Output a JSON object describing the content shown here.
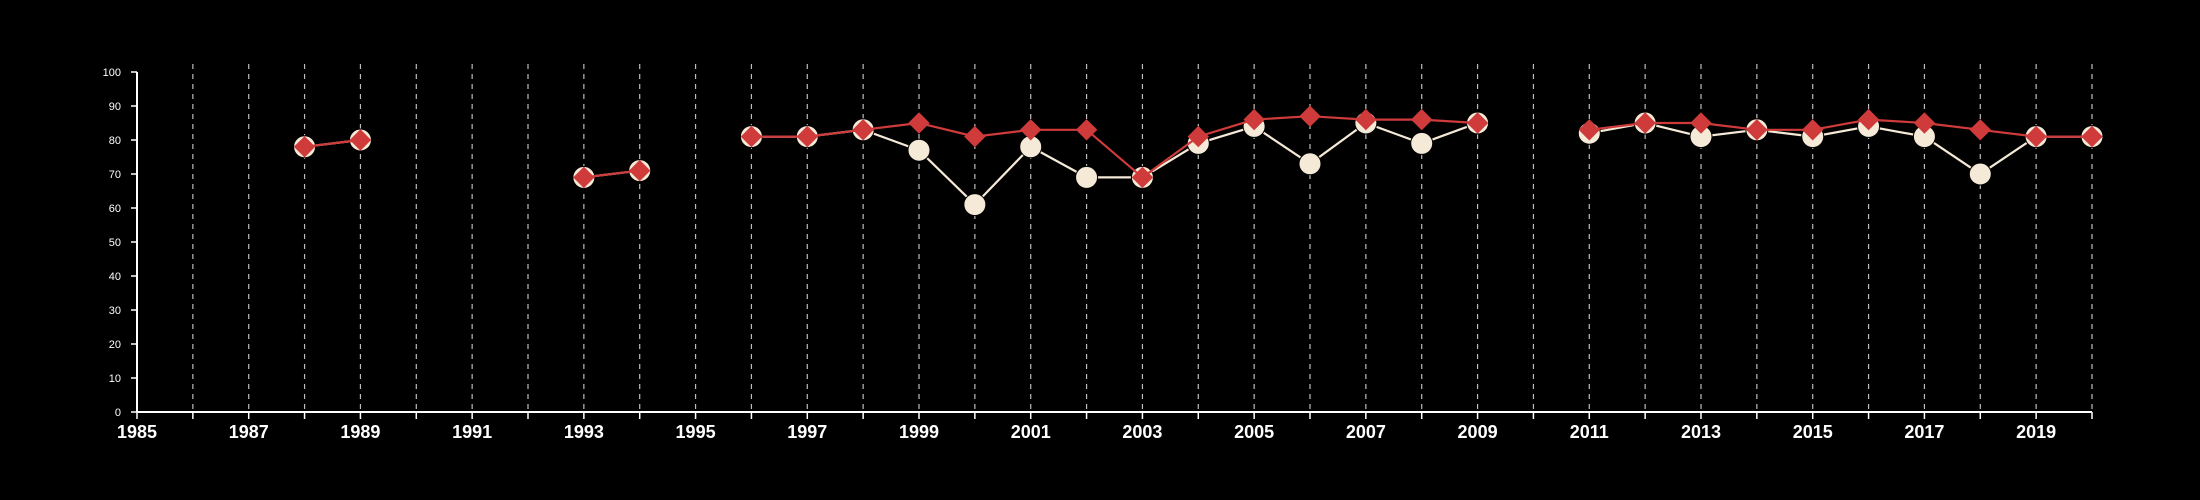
{
  "chart_data": {
    "type": "line",
    "title": "",
    "xlabel": "",
    "ylabel": "",
    "xlim": [
      1985,
      2020
    ],
    "ylim": [
      0,
      100
    ],
    "yticks": [
      0,
      10,
      20,
      30,
      40,
      50,
      60,
      70,
      80,
      90,
      100
    ],
    "xtick_labels": [
      "1985",
      "1987",
      "1989",
      "1991",
      "1993",
      "1995",
      "1997",
      "1999",
      "2001",
      "2003",
      "2005",
      "2007",
      "2009",
      "2011",
      "2013",
      "2015",
      "2017",
      "2019"
    ],
    "vertical_gridlines": "dashed, every year",
    "x": [
      1988,
      1989,
      1993,
      1994,
      1996,
      1997,
      1998,
      1999,
      2000,
      2001,
      2002,
      2003,
      2004,
      2005,
      2006,
      2007,
      2008,
      2009,
      2011,
      2012,
      2013,
      2014,
      2015,
      2016,
      2017,
      2018,
      2019,
      2020
    ],
    "series": [
      {
        "marker": "circle",
        "color": "#f5e9d7",
        "values": [
          78,
          80,
          69,
          71,
          81,
          81,
          83,
          77,
          61,
          78,
          69,
          69,
          79,
          84,
          73,
          85,
          79,
          85,
          82,
          85,
          81,
          83,
          81,
          84,
          81,
          70,
          81,
          81
        ]
      },
      {
        "marker": "diamond",
        "color": "#cf3b3b",
        "values": [
          78,
          80,
          69,
          71,
          81,
          81,
          83,
          85,
          81,
          83,
          83,
          69,
          81,
          86,
          87,
          86,
          86,
          85,
          83,
          85,
          85,
          83,
          83,
          86,
          85,
          83,
          81,
          81
        ]
      }
    ]
  }
}
